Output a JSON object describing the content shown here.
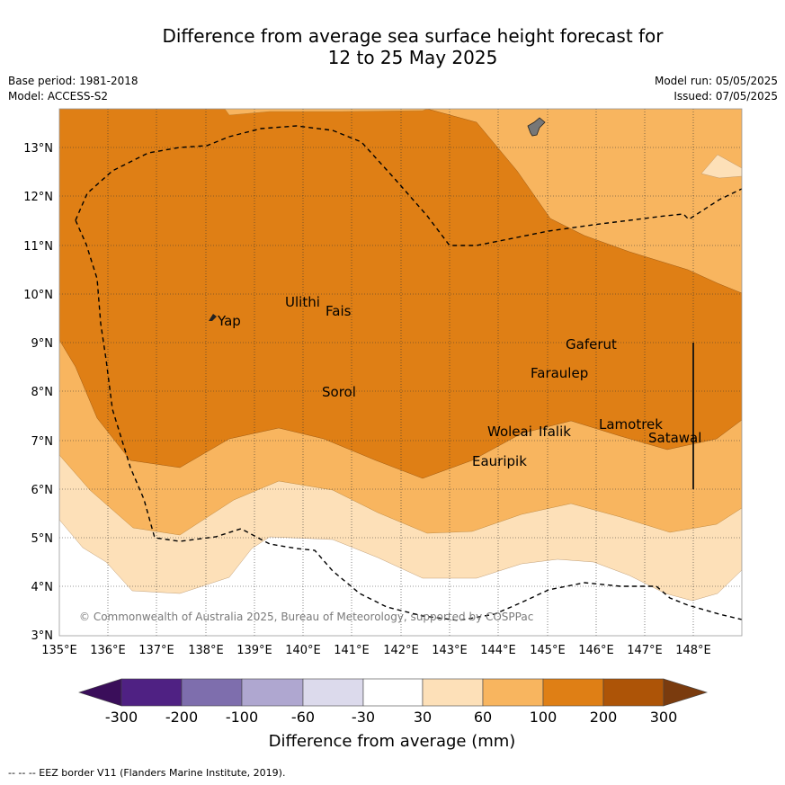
{
  "title_line1": "Difference from average sea surface height forecast for",
  "title_line2": "12 to 25 May 2025",
  "base_period": "Base period: 1981-2018",
  "model": "Model: ACCESS-S2",
  "model_run": "Model run: 05/05/2025",
  "issued": "Issued: 07/05/2025",
  "copyright": "© Commonwealth of Australia 2025, Bureau of Meteorology, supported by COSPPac",
  "footnote": "--  --  -- EEZ border V11 (Flanders Marine Institute, 2019).",
  "map": {
    "lon_labels": [
      "135°E",
      "136°E",
      "137°E",
      "138°E",
      "139°E",
      "140°E",
      "141°E",
      "142°E",
      "143°E",
      "144°E",
      "145°E",
      "146°E",
      "147°E",
      "148°E"
    ],
    "lat_labels": [
      "3°N",
      "4°N",
      "5°N",
      "6°N",
      "7°N",
      "8°N",
      "9°N",
      "10°N",
      "11°N",
      "12°N",
      "13°N"
    ],
    "places": [
      "Yap",
      "Ulithi",
      "Fais",
      "Sorol",
      "Gaferut",
      "Faraulep",
      "Woleai",
      "Ifalik",
      "Eauripik",
      "Lamotrek",
      "Satawal"
    ]
  },
  "colorbar": {
    "tick_labels": [
      "-300",
      "-200",
      "-100",
      "-60",
      "-30",
      "30",
      "60",
      "100",
      "200",
      "300"
    ],
    "label": "Difference from average (mm)",
    "colors": [
      "#3a0e5a",
      "#4f2183",
      "#7e6ead",
      "#afa7d0",
      "#dcdaec",
      "#ffffff",
      "#fde0b8",
      "#f8b55f",
      "#df7f15",
      "#ad5407",
      "#7a3b0e"
    ]
  }
}
